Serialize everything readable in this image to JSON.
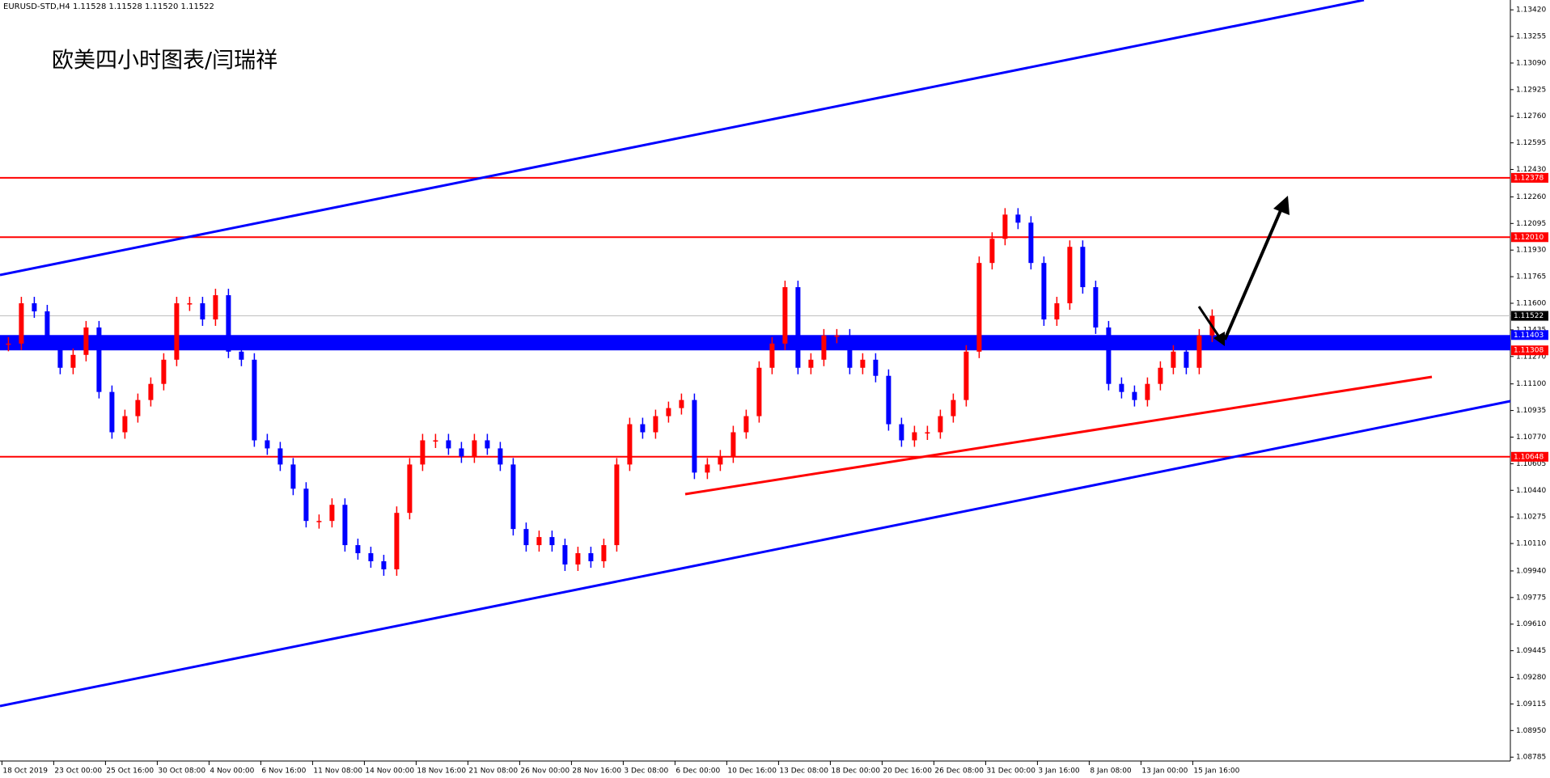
{
  "chart_data": {
    "type": "candlestick",
    "header": "EURUSD-STD,H4  1.11528 1.11528 1.11520 1.11522",
    "title": "欧美四小时图表/闫瑞祥",
    "up_color": "#ff0000",
    "down_color": "#0000ff",
    "close": [
      1.1135,
      1.116,
      1.1155,
      1.1135,
      1.112,
      1.1128,
      1.1145,
      1.1105,
      1.108,
      1.109,
      1.11,
      1.111,
      1.1125,
      1.116,
      1.116,
      1.115,
      1.1165,
      1.113,
      1.1125,
      1.1075,
      1.107,
      1.106,
      1.1045,
      1.1025,
      1.1025,
      1.1035,
      1.101,
      1.1005,
      1.1,
      1.0995,
      1.103,
      1.106,
      1.1075,
      1.1075,
      1.107,
      1.1065,
      1.1075,
      1.107,
      1.106,
      1.102,
      1.101,
      1.1015,
      1.101,
      1.0998,
      1.1005,
      1.1,
      1.101,
      1.106,
      1.1085,
      1.108,
      1.109,
      1.1095,
      1.11,
      1.1055,
      1.106,
      1.1065,
      1.108,
      1.109,
      1.112,
      1.1135,
      1.117,
      1.112,
      1.1125,
      1.114,
      1.114,
      1.112,
      1.1125,
      1.1115,
      1.1085,
      1.1075,
      1.108,
      1.108,
      1.109,
      1.11,
      1.113,
      1.1185,
      1.12,
      1.1215,
      1.121,
      1.1185,
      1.115,
      1.116,
      1.1195,
      1.117,
      1.1145,
      1.111,
      1.1105,
      1.11,
      1.111,
      1.112,
      1.113,
      1.112,
      1.114,
      1.11522
    ],
    "x_labels": [
      "18 Oct 2019",
      "23 Oct 00:00",
      "25 Oct 16:00",
      "30 Oct 08:00",
      "4 Nov 00:00",
      "6 Nov 16:00",
      "11 Nov 08:00",
      "14 Nov 00:00",
      "18 Nov 16:00",
      "21 Nov 08:00",
      "26 Nov 00:00",
      "28 Nov 16:00",
      "3 Dec 08:00",
      "6 Dec 00:00",
      "10 Dec 16:00",
      "13 Dec 08:00",
      "18 Dec 00:00",
      "20 Dec 16:00",
      "26 Dec 08:00",
      "31 Dec 00:00",
      "3 Jan 16:00",
      "8 Jan 08:00",
      "13 Jan 00:00",
      "15 Jan 16:00"
    ],
    "ylim": [
      1.08761,
      1.13481
    ],
    "yticks": [
      {
        "value": 1.1342,
        "label": "1.13420"
      },
      {
        "value": 1.13255,
        "label": "1.13255"
      },
      {
        "value": 1.1309,
        "label": "1.13090"
      },
      {
        "value": 1.12925,
        "label": "1.12925"
      },
      {
        "value": 1.1276,
        "label": "1.12760"
      },
      {
        "value": 1.12595,
        "label": "1.12595"
      },
      {
        "value": 1.1243,
        "label": "1.12430"
      },
      {
        "value": 1.1226,
        "label": "1.12260"
      },
      {
        "value": 1.12095,
        "label": "1.12095"
      },
      {
        "value": 1.1193,
        "label": "1.11930"
      },
      {
        "value": 1.11765,
        "label": "1.11765"
      },
      {
        "value": 1.116,
        "label": "1.11600"
      },
      {
        "value": 1.11435,
        "label": "1.11435"
      },
      {
        "value": 1.1127,
        "label": "1.11270"
      },
      {
        "value": 1.111,
        "label": "1.11100"
      },
      {
        "value": 1.10935,
        "label": "1.10935"
      },
      {
        "value": 1.1077,
        "label": "1.10770"
      },
      {
        "value": 1.10605,
        "label": "1.10605"
      },
      {
        "value": 1.1044,
        "label": "1.10440"
      },
      {
        "value": 1.10275,
        "label": "1.10275"
      },
      {
        "value": 1.1011,
        "label": "1.10110"
      },
      {
        "value": 1.0994,
        "label": "1.09940"
      },
      {
        "value": 1.09775,
        "label": "1.09775"
      },
      {
        "value": 1.0961,
        "label": "1.09610"
      },
      {
        "value": 1.09445,
        "label": "1.09445"
      },
      {
        "value": 1.0928,
        "label": "1.09280"
      },
      {
        "value": 1.09115,
        "label": "1.09115"
      },
      {
        "value": 1.0895,
        "label": "1.08950"
      },
      {
        "value": 1.08785,
        "label": "1.08785"
      }
    ],
    "levels": [
      {
        "value": 1.12378,
        "label": "1.12378",
        "color": "#ff0000"
      },
      {
        "value": 1.1201,
        "label": "1.12010",
        "color": "#ff0000"
      },
      {
        "value": 1.10648,
        "label": "1.10648",
        "color": "#ff0000"
      }
    ],
    "zone": {
      "values": [
        1.11308,
        1.11403
      ],
      "value_labels": [
        "1.11308",
        "1.11403"
      ],
      "label_colors": [
        "#ff0000",
        "#0000ff"
      ],
      "color": "#0000ff"
    },
    "last_price": {
      "value": 1.11522,
      "label": "1.11522",
      "color": "#000000"
    }
  }
}
